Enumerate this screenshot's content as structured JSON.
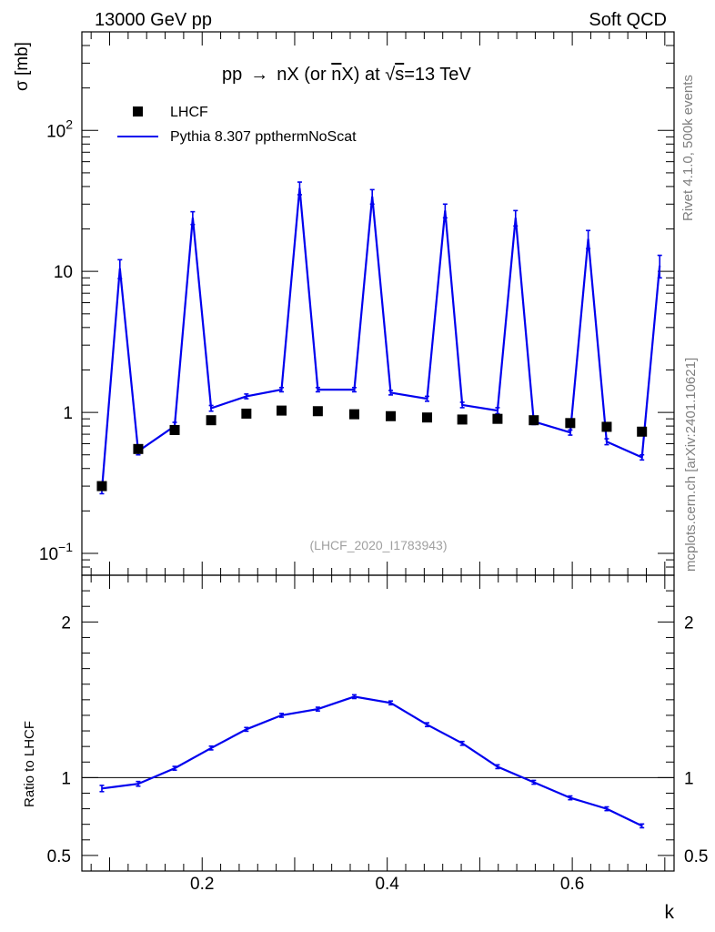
{
  "header": {
    "left": "13000 GeV pp",
    "right": "Soft QCD"
  },
  "side_labels": {
    "upper": "Rivet 4.1.0,  500k events",
    "lower": "mcplots.cern.ch [arXiv:2401.10621]"
  },
  "chart_data": {
    "type": "line",
    "title_parts": {
      "prefix": "pp",
      "arrow": "→",
      "middle": "nX (or ",
      "nbar": "n",
      "suffix": "X) at ",
      "root": "√",
      "sqrt_arg": "s",
      "energy": "=13 TeV"
    },
    "watermark": "(LHCF_2020_I1783943)",
    "xlabel": "k",
    "ylabel": "σ [mb]",
    "ratio_ylabel": "Ratio to LHCF",
    "x_range": [
      0.07,
      0.71
    ],
    "ylim": [
      0.07,
      500
    ],
    "ratio_ylim": [
      0.4,
      2.3
    ],
    "x_ticks": [
      {
        "v": 0.2,
        "label": "0.2"
      },
      {
        "v": 0.4,
        "label": "0.4"
      },
      {
        "v": 0.6,
        "label": "0.6"
      }
    ],
    "y_ticks": [
      {
        "v": 0.1,
        "base": "10",
        "exp": "−1"
      },
      {
        "v": 1,
        "base": "1",
        "exp": ""
      },
      {
        "v": 10,
        "base": "10",
        "exp": ""
      },
      {
        "v": 100,
        "base": "10",
        "exp": "2"
      }
    ],
    "ratio_ticks": [
      {
        "v": 0.5,
        "label": "0.5"
      },
      {
        "v": 1,
        "label": "1"
      },
      {
        "v": 2,
        "label": "2"
      }
    ],
    "legend": [
      {
        "name": "LHCF",
        "marker": "square",
        "color": "#000000"
      },
      {
        "name": "Pythia 8.307 ppthermNoScat",
        "marker": "line",
        "color": "#0000ee"
      }
    ],
    "data_series": {
      "name": "LHCF",
      "x": [
        0.0916,
        0.1309,
        0.1703,
        0.2097,
        0.2478,
        0.2858,
        0.325,
        0.3644,
        0.4038,
        0.4431,
        0.4811,
        0.5192,
        0.5584,
        0.5978,
        0.6372,
        0.6753
      ],
      "values": [
        0.3,
        0.55,
        0.75,
        0.88,
        0.98,
        1.03,
        1.02,
        0.97,
        0.94,
        0.92,
        0.89,
        0.9,
        0.88,
        0.84,
        0.79,
        0.73
      ]
    },
    "mc_series": {
      "name": "Pythia 8.307 ppthermNoScat",
      "x": [
        0.0916,
        0.1111,
        0.1309,
        0.1703,
        0.1898,
        0.2097,
        0.2478,
        0.2858,
        0.3054,
        0.325,
        0.3644,
        0.3838,
        0.4038,
        0.4431,
        0.4626,
        0.4811,
        0.5192,
        0.5387,
        0.5584,
        0.5978,
        0.6172,
        0.6372,
        0.6753,
        0.6945
      ],
      "values": [
        0.28,
        10.5,
        0.53,
        0.8,
        24.0,
        1.07,
        1.3,
        1.45,
        39.0,
        1.45,
        1.45,
        34.0,
        1.38,
        1.25,
        27.0,
        1.13,
        1.03,
        24.0,
        0.86,
        0.72,
        17.0,
        0.62,
        0.48,
        11.0
      ],
      "errors": [
        0.015,
        1.6,
        0.03,
        0.05,
        2.5,
        0.05,
        0.05,
        0.05,
        4.0,
        0.05,
        0.05,
        4.0,
        0.05,
        0.05,
        3.0,
        0.05,
        0.05,
        3.0,
        0.04,
        0.03,
        2.5,
        0.03,
        0.02,
        2.0
      ]
    },
    "ratio_series": {
      "name": "Pythia 8.307 ppthermNoScat / LHCF",
      "x": [
        0.0916,
        0.1309,
        0.1703,
        0.2097,
        0.2478,
        0.2858,
        0.325,
        0.3644,
        0.4038,
        0.4431,
        0.4811,
        0.5192,
        0.5584,
        0.5978,
        0.6372,
        0.6753
      ],
      "values": [
        0.93,
        0.96,
        1.06,
        1.19,
        1.31,
        1.4,
        1.44,
        1.52,
        1.48,
        1.34,
        1.22,
        1.07,
        0.97,
        0.87,
        0.8,
        0.69
      ],
      "errors": [
        0.02,
        0.015,
        0.012,
        0.012,
        0.012,
        0.012,
        0.012,
        0.012,
        0.012,
        0.012,
        0.012,
        0.012,
        0.012,
        0.012,
        0.012,
        0.012
      ]
    },
    "reference_line": 1
  }
}
